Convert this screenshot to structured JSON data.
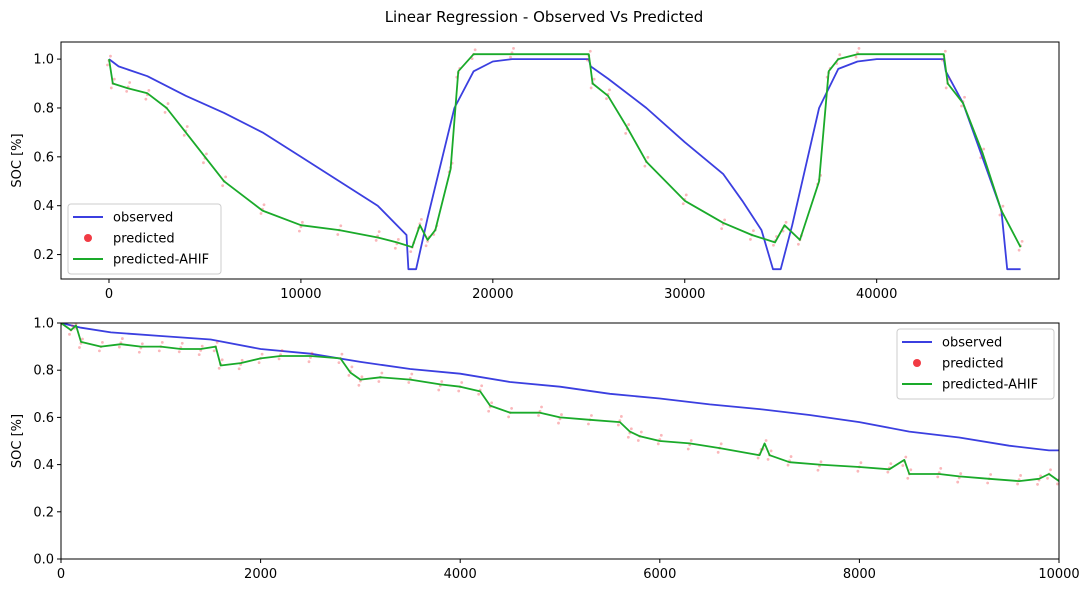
{
  "figure": {
    "title": "Linear Regression - Observed Vs Predicted"
  },
  "colors": {
    "observed": "#3b3fe0",
    "predicted": "#f0303a",
    "predicted_ahif": "#1aaa2a",
    "axes": "#000000"
  },
  "chart_data": [
    {
      "type": "line",
      "ylabel": "SOC [%]",
      "xlabel": "",
      "xlim": [
        -2500,
        49500
      ],
      "ylim": [
        0.1,
        1.07
      ],
      "xticks": [
        0,
        10000,
        20000,
        30000,
        40000
      ],
      "xtick_labels": [
        "0",
        "10000",
        "20000",
        "30000",
        "40000"
      ],
      "yticks": [
        0.2,
        0.4,
        0.6,
        0.8,
        1.0
      ],
      "ytick_labels": [
        "0.2",
        "0.4",
        "0.6",
        "0.8",
        "1.0"
      ],
      "grid": false,
      "legend": "lower-left",
      "series": [
        {
          "name": "observed",
          "style": "line",
          "x": [
            0,
            500,
            2000,
            4000,
            6000,
            8000,
            10000,
            12000,
            14000,
            15500,
            15600,
            16000,
            16600,
            18000,
            19000,
            20000,
            21000,
            25000,
            25100,
            26000,
            28000,
            30000,
            32000,
            33000,
            34000,
            34600,
            35000,
            35600,
            37000,
            38000,
            39000,
            40000,
            43500,
            43600,
            44500,
            45500,
            46500,
            46800,
            47500
          ],
          "y": [
            1.0,
            0.97,
            0.93,
            0.85,
            0.78,
            0.7,
            0.6,
            0.5,
            0.4,
            0.28,
            0.14,
            0.14,
            0.35,
            0.8,
            0.95,
            0.99,
            1.0,
            1.0,
            0.97,
            0.92,
            0.8,
            0.66,
            0.53,
            0.42,
            0.3,
            0.14,
            0.14,
            0.32,
            0.8,
            0.96,
            0.99,
            1.0,
            1.0,
            0.95,
            0.82,
            0.6,
            0.38,
            0.14,
            0.14
          ]
        },
        {
          "name": "predicted",
          "style": "scatter",
          "x": [
            0,
            200,
            1000,
            2000,
            3000,
            4000,
            5000,
            6000,
            8000,
            10000,
            12000,
            14000,
            15000,
            15800,
            16200,
            16600,
            17000,
            17800,
            18200,
            19000,
            21000,
            25000,
            25200,
            26000,
            27000,
            28000,
            30000,
            32000,
            33500,
            34700,
            35200,
            36000,
            37000,
            37500,
            38000,
            39000,
            43500,
            43700,
            44500,
            45500,
            46500,
            47500
          ],
          "y": [
            1.0,
            0.9,
            0.88,
            0.86,
            0.8,
            0.7,
            0.6,
            0.5,
            0.38,
            0.32,
            0.3,
            0.27,
            0.25,
            0.23,
            0.32,
            0.26,
            0.3,
            0.55,
            0.95,
            1.02,
            1.02,
            1.02,
            0.9,
            0.85,
            0.72,
            0.58,
            0.42,
            0.33,
            0.28,
            0.25,
            0.32,
            0.26,
            0.5,
            0.95,
            1.0,
            1.02,
            1.02,
            0.9,
            0.82,
            0.62,
            0.38,
            0.23
          ]
        },
        {
          "name": "predicted-AHIF",
          "style": "line",
          "x": [
            0,
            200,
            1000,
            2000,
            3000,
            4000,
            5000,
            6000,
            8000,
            10000,
            12000,
            14000,
            15000,
            15800,
            16200,
            16600,
            17000,
            17800,
            18200,
            19000,
            21000,
            25000,
            25200,
            26000,
            27000,
            28000,
            30000,
            32000,
            33500,
            34700,
            35200,
            36000,
            37000,
            37500,
            38000,
            39000,
            43500,
            43700,
            44500,
            45500,
            46500,
            47500
          ],
          "y": [
            1.0,
            0.9,
            0.88,
            0.86,
            0.8,
            0.7,
            0.6,
            0.5,
            0.38,
            0.32,
            0.3,
            0.27,
            0.25,
            0.23,
            0.32,
            0.26,
            0.3,
            0.55,
            0.95,
            1.02,
            1.02,
            1.02,
            0.9,
            0.85,
            0.72,
            0.58,
            0.42,
            0.33,
            0.28,
            0.25,
            0.32,
            0.26,
            0.5,
            0.95,
            1.0,
            1.02,
            1.02,
            0.9,
            0.82,
            0.62,
            0.38,
            0.23
          ]
        }
      ]
    },
    {
      "type": "line",
      "ylabel": "SOC [%]",
      "xlabel": "",
      "xlim": [
        0,
        10000
      ],
      "ylim": [
        0.0,
        1.0
      ],
      "xticks": [
        0,
        2000,
        4000,
        6000,
        8000,
        10000
      ],
      "xtick_labels": [
        "0",
        "2000",
        "4000",
        "6000",
        "8000",
        "10000"
      ],
      "yticks": [
        0.0,
        0.2,
        0.4,
        0.6,
        0.8,
        1.0
      ],
      "ytick_labels": [
        "0.0",
        "0.2",
        "0.4",
        "0.6",
        "0.8",
        "1.0"
      ],
      "grid": false,
      "legend": "upper-right",
      "series": [
        {
          "name": "observed",
          "style": "line",
          "x": [
            0,
            200,
            500,
            1000,
            1500,
            2000,
            2500,
            3000,
            3500,
            4000,
            4500,
            5000,
            5500,
            6000,
            6500,
            7000,
            7500,
            8000,
            8500,
            9000,
            9500,
            9900,
            10000
          ],
          "y": [
            1.0,
            0.98,
            0.96,
            0.945,
            0.93,
            0.89,
            0.87,
            0.835,
            0.805,
            0.785,
            0.75,
            0.73,
            0.7,
            0.68,
            0.655,
            0.635,
            0.61,
            0.58,
            0.54,
            0.515,
            0.48,
            0.46,
            0.46
          ]
        },
        {
          "name": "predicted",
          "style": "scatter",
          "x": [
            0,
            100,
            150,
            200,
            400,
            600,
            800,
            1000,
            1200,
            1400,
            1550,
            1600,
            1800,
            2000,
            2200,
            2500,
            2800,
            2900,
            3000,
            3200,
            3500,
            3800,
            4000,
            4200,
            4300,
            4500,
            4800,
            5000,
            5300,
            5600,
            5700,
            5800,
            6000,
            6300,
            6600,
            7000,
            7050,
            7100,
            7300,
            7600,
            8000,
            8300,
            8450,
            8500,
            8800,
            9000,
            9300,
            9600,
            9800,
            9900,
            10000
          ],
          "y": [
            1.0,
            0.97,
            0.99,
            0.92,
            0.9,
            0.91,
            0.9,
            0.9,
            0.89,
            0.89,
            0.9,
            0.82,
            0.83,
            0.85,
            0.86,
            0.86,
            0.85,
            0.79,
            0.76,
            0.77,
            0.76,
            0.74,
            0.73,
            0.71,
            0.65,
            0.62,
            0.62,
            0.6,
            0.59,
            0.58,
            0.54,
            0.52,
            0.5,
            0.49,
            0.47,
            0.44,
            0.49,
            0.44,
            0.41,
            0.4,
            0.39,
            0.38,
            0.42,
            0.36,
            0.36,
            0.35,
            0.34,
            0.33,
            0.34,
            0.36,
            0.33
          ]
        },
        {
          "name": "predicted-AHIF",
          "style": "line",
          "x": [
            0,
            100,
            150,
            200,
            400,
            600,
            800,
            1000,
            1200,
            1400,
            1550,
            1600,
            1800,
            2000,
            2200,
            2500,
            2800,
            2900,
            3000,
            3200,
            3500,
            3800,
            4000,
            4200,
            4300,
            4500,
            4800,
            5000,
            5300,
            5600,
            5700,
            5800,
            6000,
            6300,
            6600,
            7000,
            7050,
            7100,
            7300,
            7600,
            8000,
            8300,
            8450,
            8500,
            8800,
            9000,
            9300,
            9600,
            9800,
            9900,
            10000
          ],
          "y": [
            1.0,
            0.97,
            0.99,
            0.92,
            0.9,
            0.91,
            0.9,
            0.9,
            0.89,
            0.89,
            0.9,
            0.82,
            0.83,
            0.85,
            0.86,
            0.86,
            0.85,
            0.79,
            0.76,
            0.77,
            0.76,
            0.74,
            0.73,
            0.71,
            0.65,
            0.62,
            0.62,
            0.6,
            0.59,
            0.58,
            0.54,
            0.52,
            0.5,
            0.49,
            0.47,
            0.44,
            0.49,
            0.44,
            0.41,
            0.4,
            0.39,
            0.38,
            0.42,
            0.36,
            0.36,
            0.35,
            0.34,
            0.33,
            0.34,
            0.36,
            0.33
          ]
        }
      ]
    }
  ]
}
